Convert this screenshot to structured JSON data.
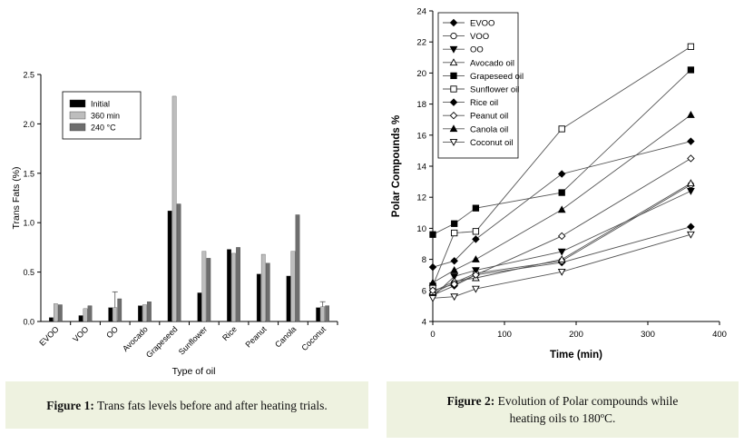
{
  "figure1": {
    "caption_label": "Figure 1:",
    "caption_text": " Trans fats levels before and after heating trials.",
    "chart_data": {
      "type": "bar",
      "xlabel": "Type of oil",
      "ylabel": "Trans Fats (%)",
      "ylim": [
        0,
        2.5
      ],
      "yticks": [
        "0.0",
        "0.5",
        "1.0",
        "1.5",
        "2.0",
        "2.5"
      ],
      "legend_position": "top-left",
      "categories": [
        "EVOO",
        "VOO",
        "OO",
        "Avocado",
        "Grapeseed",
        "Sunflower",
        "Rice",
        "Peanut",
        "Canola",
        "Coconut"
      ],
      "series": [
        {
          "name": "Initial",
          "color": "#000000",
          "values": [
            0.04,
            0.06,
            0.14,
            0.16,
            1.12,
            0.29,
            0.73,
            0.48,
            0.46,
            0.14
          ]
        },
        {
          "name": "360 min",
          "color": "#bdbdbd",
          "values": [
            0.18,
            0.13,
            0.14,
            0.17,
            2.28,
            0.71,
            0.69,
            0.68,
            0.71,
            0.15
          ]
        },
        {
          "name": "240 °C",
          "color": "#6e6e6e",
          "values": [
            0.17,
            0.16,
            0.23,
            0.2,
            1.19,
            0.64,
            0.75,
            0.59,
            1.08,
            0.16
          ]
        }
      ],
      "error_bars": [
        {
          "category": "OO",
          "series": "360 min",
          "high": 0.3
        },
        {
          "category": "Coconut",
          "series": "360 min",
          "high": 0.2
        }
      ]
    }
  },
  "figure2": {
    "caption_label": "Figure 2:",
    "caption_text_1": " Evolution of Polar compounds while",
    "caption_text_2": "heating oils to 180ºC.",
    "chart_data": {
      "type": "line",
      "xlabel": "Time (min)",
      "ylabel": "Polar Compounds %",
      "xlim": [
        0,
        400
      ],
      "ylim": [
        4,
        24
      ],
      "xticks": [
        0,
        100,
        200,
        300,
        400
      ],
      "yticks": [
        4,
        6,
        8,
        10,
        12,
        14,
        16,
        18,
        20,
        22,
        24
      ],
      "legend_position": "top-left",
      "x": [
        0,
        30,
        60,
        180,
        360
      ],
      "series": [
        {
          "name": "EVOO",
          "marker": "diamond-filled",
          "values": [
            5.7,
            6.3,
            7.0,
            7.8,
            10.1
          ]
        },
        {
          "name": "VOO",
          "marker": "circle-open",
          "values": [
            5.8,
            6.5,
            7.1,
            7.9,
            12.8
          ]
        },
        {
          "name": "OO",
          "marker": "tri-down-filled",
          "values": [
            5.6,
            6.9,
            7.3,
            8.5,
            12.4
          ]
        },
        {
          "name": "Avocado oil",
          "marker": "tri-up-open",
          "values": [
            5.9,
            6.6,
            6.8,
            8.0,
            12.9
          ]
        },
        {
          "name": "Grapeseed oil",
          "marker": "square-filled",
          "values": [
            9.6,
            10.3,
            11.3,
            12.3,
            20.2
          ]
        },
        {
          "name": "Sunflower oil",
          "marker": "square-open",
          "values": [
            6.3,
            9.7,
            9.8,
            16.4,
            21.7
          ]
        },
        {
          "name": "Rice oil",
          "marker": "diamond-filled",
          "values": [
            7.5,
            7.9,
            9.3,
            13.5,
            15.6
          ]
        },
        {
          "name": "Peanut oil",
          "marker": "diamond-open",
          "values": [
            6.0,
            6.4,
            7.0,
            9.5,
            14.5
          ]
        },
        {
          "name": "Canola oil",
          "marker": "tri-up-filled",
          "values": [
            6.5,
            7.3,
            8.0,
            11.2,
            17.3
          ]
        },
        {
          "name": "Coconut oil",
          "marker": "tri-down-open",
          "values": [
            5.5,
            5.6,
            6.1,
            7.2,
            9.6
          ]
        }
      ]
    }
  }
}
